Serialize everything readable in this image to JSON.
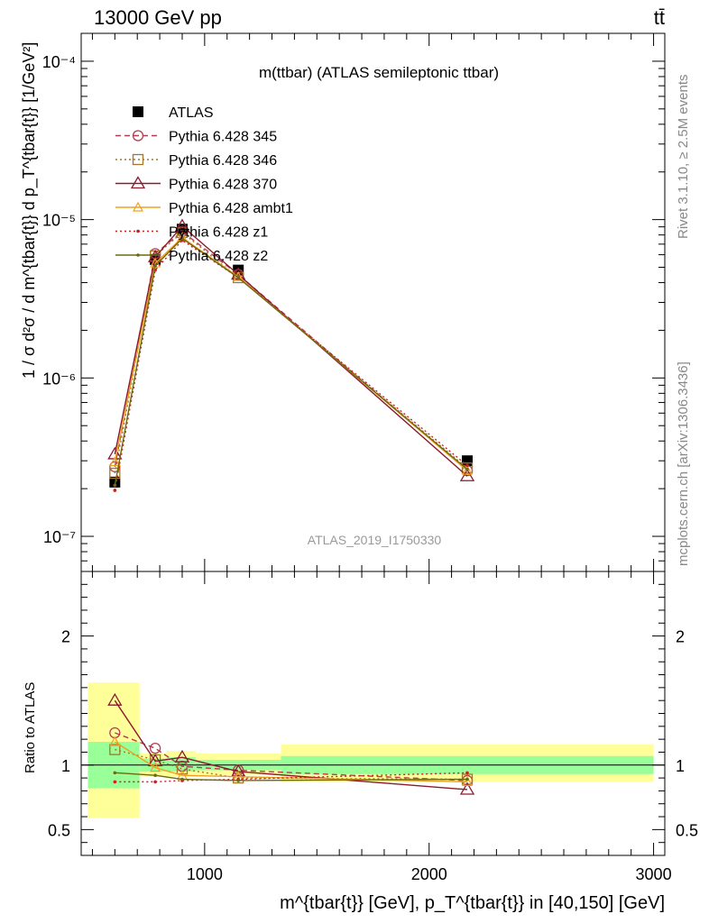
{
  "header": {
    "left": "13000 GeV pp",
    "right": "tt̄"
  },
  "side_labels": {
    "rivet": "Rivet 3.1.10, ≥ 2.5M events",
    "mcplots": "mcplots.cern.ch [arXiv:1306.3436]"
  },
  "chart_data": [
    {
      "type": "line",
      "panel": "main",
      "title": "m(ttbar) (ATLAS semileptonic ttbar)",
      "watermark": "ATLAS_2019_I1750330",
      "ylabel": "1 / σ d²σ / d m^{tbar{t}} d p_T^{tbar{t}} [1/GeV²]",
      "yscale": "log",
      "xlim": [
        450,
        3050
      ],
      "ylim": [
        6e-08,
        0.00015
      ],
      "ytick_labels": [
        "10⁻⁷",
        "10⁻⁶",
        "10⁻⁵",
        "10⁻⁴"
      ],
      "ytick_values": [
        1e-07,
        1e-06,
        1e-05,
        0.0001
      ],
      "legend_position": "top-left",
      "x": [
        600,
        780,
        900,
        1150,
        2170
      ],
      "series": [
        {
          "name": "ATLAS",
          "color": "#000000",
          "style": "solid",
          "marker": "square-filled",
          "values": [
            2.2e-07,
            5.6e-06,
            8.7e-06,
            4.8e-06,
            3e-07
          ]
        },
        {
          "name": "Pythia 6.428 345",
          "color": "#b23e54",
          "style": "dash",
          "marker": "circle-open",
          "values": [
            2.75e-07,
            6.1e-06,
            8.4e-06,
            4.5e-06,
            2.6e-07
          ]
        },
        {
          "name": "Pythia 6.428 346",
          "color": "#a07828",
          "style": "dot",
          "marker": "square-open",
          "values": [
            2.5e-07,
            5.9e-06,
            8.3e-06,
            4.3e-06,
            2.7e-07
          ]
        },
        {
          "name": "Pythia 6.428 370",
          "color": "#8b1a2e",
          "style": "solid",
          "marker": "triangle-open",
          "values": [
            3.3e-07,
            5.8e-06,
            9.1e-06,
            4.5e-06,
            2.4e-07
          ]
        },
        {
          "name": "Pythia 6.428 ambt1",
          "color": "#f0a020",
          "style": "solid",
          "marker": "triangle-open-small",
          "values": [
            2.95e-07,
            5.3e-06,
            7.7e-06,
            4.35e-06,
            2.6e-07
          ]
        },
        {
          "name": "Pythia 6.428 z1",
          "color": "#cc2020",
          "style": "dot",
          "marker": "dot",
          "values": [
            1.95e-07,
            4.8e-06,
            7.4e-06,
            4.3e-06,
            2.8e-07
          ]
        },
        {
          "name": "Pythia 6.428 z2",
          "color": "#6b6b10",
          "style": "solid",
          "marker": "dot",
          "values": [
            2.1e-07,
            5.1e-06,
            7.6e-06,
            4.3e-06,
            2.65e-07
          ]
        }
      ]
    },
    {
      "type": "line",
      "panel": "ratio",
      "xlabel": "m^{tbar{t}} [GeV], p_T^{tbar{t}} in [40,150] [GeV]",
      "ylabel": "Ratio to ATLAS",
      "xlim": [
        450,
        3050
      ],
      "ylim": [
        0.3,
        2.5
      ],
      "ytick_labels": [
        "0.5",
        "1",
        "2"
      ],
      "ytick_values": [
        0.5,
        1,
        2
      ],
      "xtick_labels": [
        "1000",
        "2000",
        "3000"
      ],
      "xtick_values": [
        1000,
        2000,
        3000
      ],
      "bins": [
        {
          "x0": 480,
          "x1": 710,
          "inner": [
            0.82,
            1.18
          ],
          "outer": [
            0.59,
            1.64
          ]
        },
        {
          "x0": 710,
          "x1": 830,
          "inner": [
            0.95,
            1.05
          ],
          "outer": [
            0.91,
            1.09
          ]
        },
        {
          "x0": 830,
          "x1": 960,
          "inner": [
            0.95,
            1.06
          ],
          "outer": [
            0.91,
            1.11
          ]
        },
        {
          "x0": 960,
          "x1": 1340,
          "inner": [
            0.96,
            1.04
          ],
          "outer": [
            0.92,
            1.09
          ]
        },
        {
          "x0": 1340,
          "x1": 3000,
          "inner": [
            0.93,
            1.07
          ],
          "outer": [
            0.87,
            1.16
          ]
        }
      ],
      "x": [
        600,
        780,
        900,
        1150,
        2170
      ],
      "series": [
        {
          "name": "Pythia 6.428 345",
          "color": "#b23e54",
          "style": "dash",
          "marker": "circle-open",
          "values": [
            1.25,
            1.13,
            0.99,
            0.96,
            0.88
          ]
        },
        {
          "name": "Pythia 6.428 346",
          "color": "#a07828",
          "style": "dot",
          "marker": "square-open",
          "values": [
            1.12,
            1.04,
            0.97,
            0.9,
            0.89
          ]
        },
        {
          "name": "Pythia 6.428 370",
          "color": "#8b1a2e",
          "style": "solid",
          "marker": "triangle-open",
          "values": [
            1.5,
            1.03,
            1.06,
            0.95,
            0.81
          ]
        },
        {
          "name": "Pythia 6.428 ambt1",
          "color": "#f0a020",
          "style": "solid",
          "marker": "triangle-open-small",
          "values": [
            1.18,
            0.98,
            0.92,
            0.91,
            0.87
          ]
        },
        {
          "name": "Pythia 6.428 z1",
          "color": "#cc2020",
          "style": "dot",
          "marker": "dot",
          "values": [
            0.87,
            0.87,
            0.88,
            0.89,
            0.94
          ]
        },
        {
          "name": "Pythia 6.428 z2",
          "color": "#6b6b10",
          "style": "solid",
          "marker": "dot",
          "values": [
            0.94,
            0.92,
            0.89,
            0.88,
            0.89
          ]
        }
      ]
    }
  ]
}
